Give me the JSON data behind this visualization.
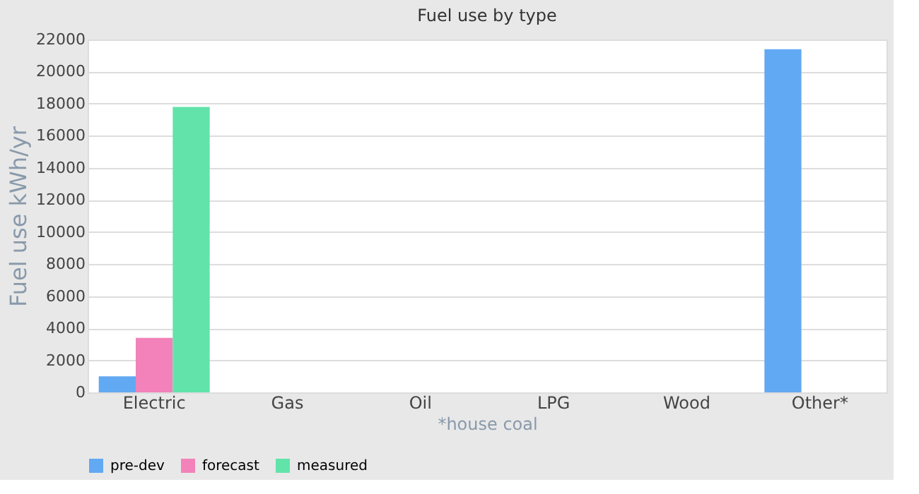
{
  "chart_data": {
    "type": "bar",
    "title": "Fuel use by type",
    "xlabel": "*house coal",
    "ylabel": "Fuel use  kWh/yr",
    "categories": [
      "Electric",
      "Gas",
      "Oil",
      "LPG",
      "Wood",
      "Other*"
    ],
    "series": [
      {
        "name": "pre-dev",
        "color": "#62a9f3",
        "values": [
          1000,
          0,
          0,
          0,
          0,
          21400
        ]
      },
      {
        "name": "forecast",
        "color": "#f282b9",
        "values": [
          3400,
          0,
          0,
          0,
          0,
          0
        ]
      },
      {
        "name": "measured",
        "color": "#62e3aa",
        "values": [
          17800,
          0,
          0,
          0,
          0,
          0
        ]
      }
    ],
    "ylim": [
      0,
      22000
    ],
    "yticks": [
      0,
      2000,
      4000,
      6000,
      8000,
      10000,
      12000,
      14000,
      16000,
      18000,
      20000,
      22000
    ],
    "grid": "y",
    "legend": "bottom"
  }
}
